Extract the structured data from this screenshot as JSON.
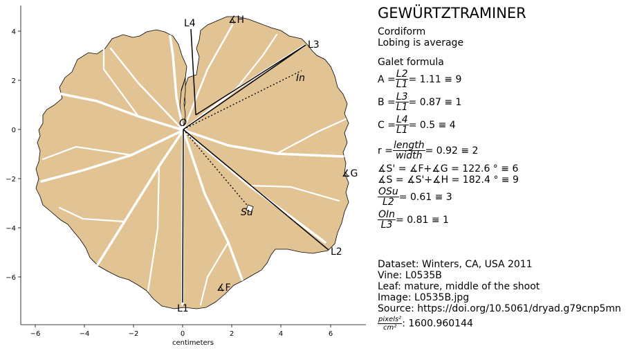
{
  "plot": {
    "x_axis_label": "centimeters",
    "x_ticks": [
      "−6",
      "−4",
      "−2",
      "0",
      "2",
      "4",
      "6"
    ],
    "y_ticks": [
      "4",
      "2",
      "0",
      "−2",
      "−4",
      "−6"
    ],
    "colors": {
      "leaf_fill": "#e2c393",
      "veins": "#ffffff",
      "outline": "#000000"
    },
    "landmarks": {
      "L1": "L1",
      "L2": "L2",
      "L3": "L3",
      "L4": "L4",
      "O": "O",
      "Su": "Su",
      "In": "In",
      "angle_H": "∡H",
      "angle_G": "∡G",
      "angle_F": "∡F"
    }
  },
  "panel": {
    "title": "GEWÜRTZTRAMINER",
    "shape": "Cordiform",
    "lobing": "Lobing is average",
    "galet_header": "Galet formula",
    "A": {
      "prefix": "A = ",
      "num": "L2",
      "den": "L1",
      "value": " = 1.11 ≡ 9"
    },
    "B": {
      "prefix": "B = ",
      "num": "L3",
      "den": "L1",
      "value": " = 0.87 ≡ 1"
    },
    "C": {
      "prefix": "C = ",
      "num": "L4",
      "den": "L1",
      "value": " = 0.5 ≡ 4"
    },
    "r": {
      "prefix": "r = ",
      "num": "length",
      "den": "width",
      "value": " = 0.92 ≡ 2"
    },
    "S_prime": "∡S' = ∡F+∡G = 122.6 ° ≡ 6",
    "S": "∡S = ∡S'+∡H = 182.4 ° ≡ 9",
    "OSu": {
      "num": "OSu",
      "den": "L2",
      "value": " = 0.61 ≡ 3"
    },
    "OIn": {
      "num": "OIn",
      "den": "L3",
      "value": " = 0.81 ≡ 1"
    },
    "dataset": "Dataset: Winters, CA, USA 2011",
    "vine": "Vine: L0535B",
    "leaf": "Leaf: mature, middle of the shoot",
    "image": "Image: L0535B.jpg",
    "source": "Source: https://doi.org/10.5061/dryad.g79cnp5mn",
    "px_num": "pixels²",
    "px_den": "cm²",
    "px_value": ": 1600.960144"
  }
}
